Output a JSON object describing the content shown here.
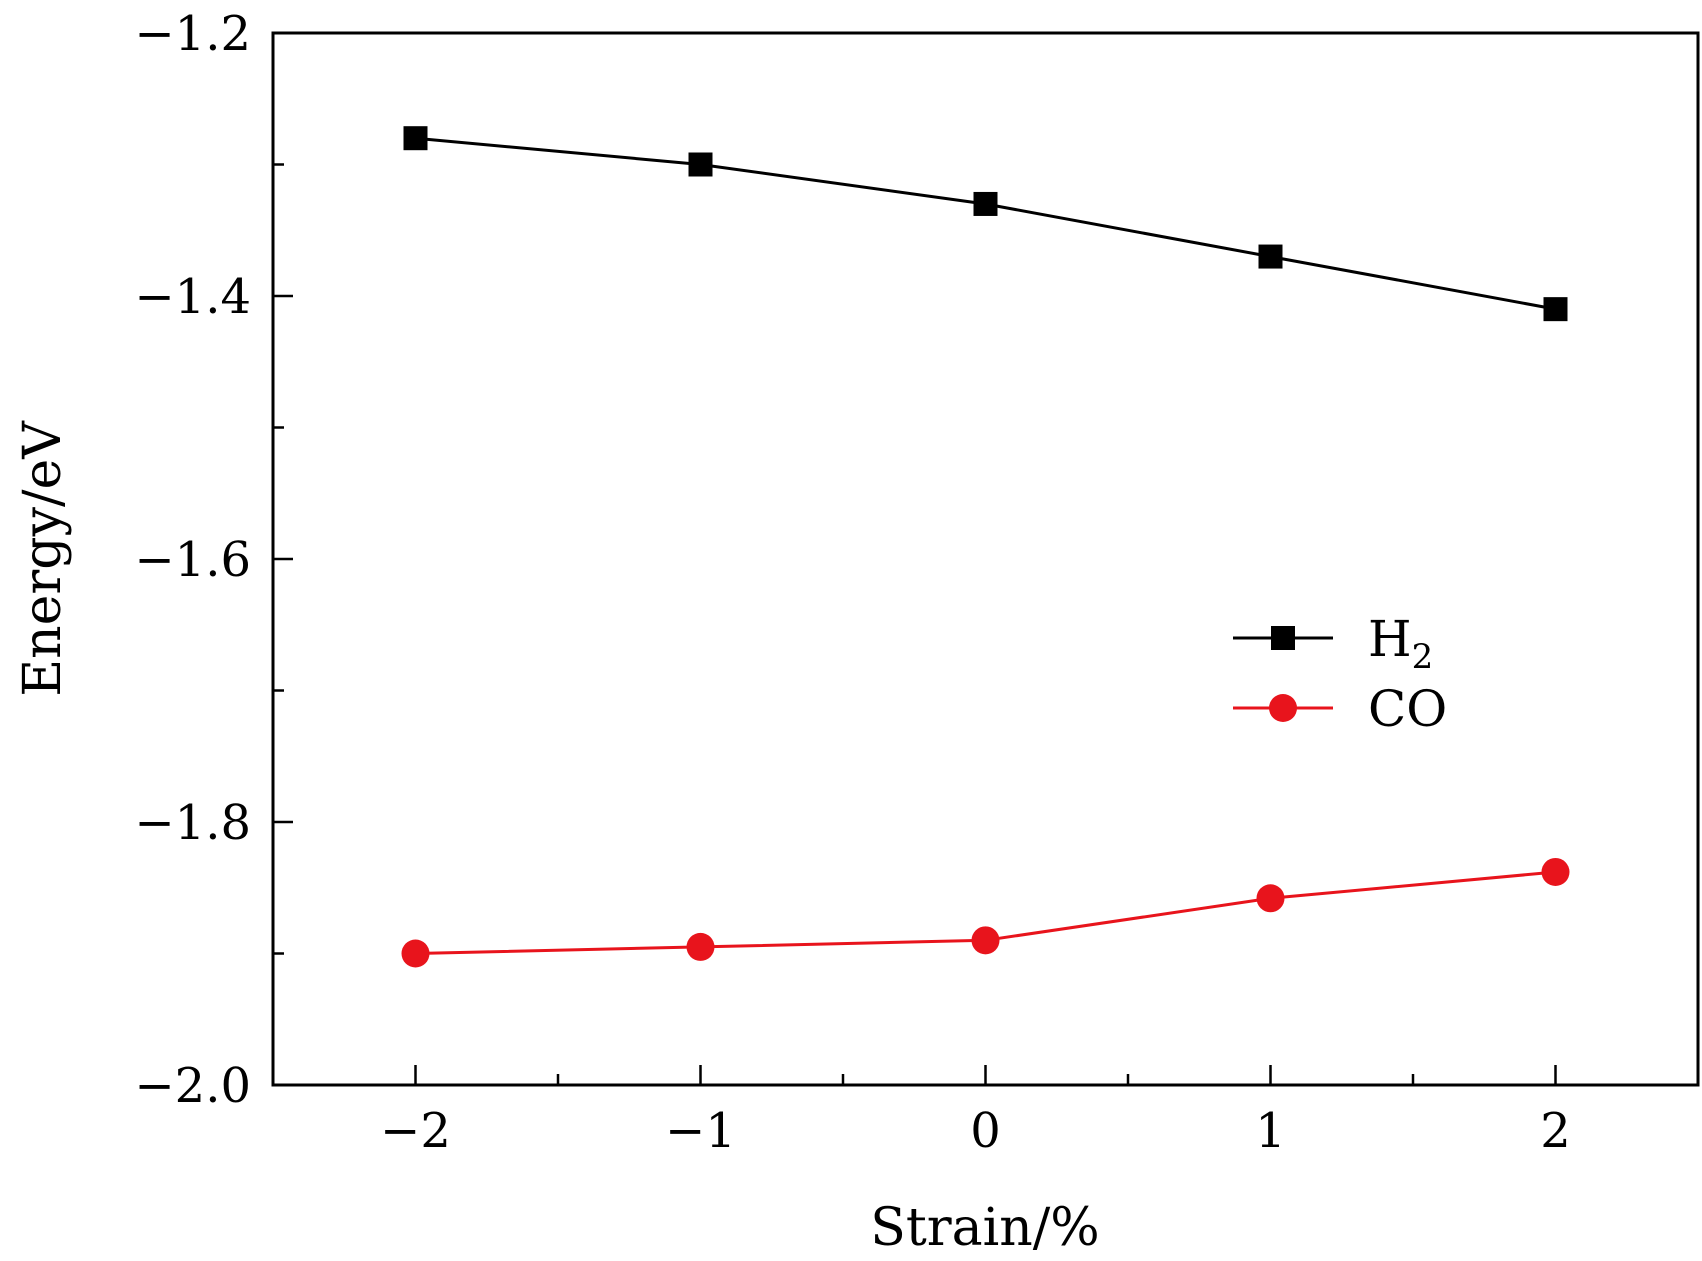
{
  "chart_data": {
    "type": "line",
    "title": "",
    "xlabel": "Strain/%",
    "ylabel": "Energy/eV",
    "x": [
      -2,
      -1,
      0,
      1,
      2
    ],
    "x_tick_labels": [
      "−2",
      "−1",
      "0",
      "1",
      "2"
    ],
    "xlim": [
      -2.5,
      2.5
    ],
    "ylim": [
      -2.0,
      -1.2
    ],
    "y_ticks": [
      -2.0,
      -1.8,
      -1.6,
      -1.4,
      -1.2
    ],
    "y_tick_labels": [
      "−2.0",
      "−1.8",
      "−1.6",
      "−1.4",
      "−1.2"
    ],
    "grid": false,
    "legend_position": "center-right",
    "series": [
      {
        "name": "H",
        "subscript": "2",
        "marker": "square",
        "color": "#000000",
        "values": [
          -1.28,
          -1.3,
          -1.33,
          -1.37,
          -1.41
        ]
      },
      {
        "name": "CO",
        "subscript": "",
        "marker": "circle",
        "color": "#e8141c",
        "values": [
          -1.9,
          -1.895,
          -1.89,
          -1.858,
          -1.838
        ]
      }
    ]
  }
}
